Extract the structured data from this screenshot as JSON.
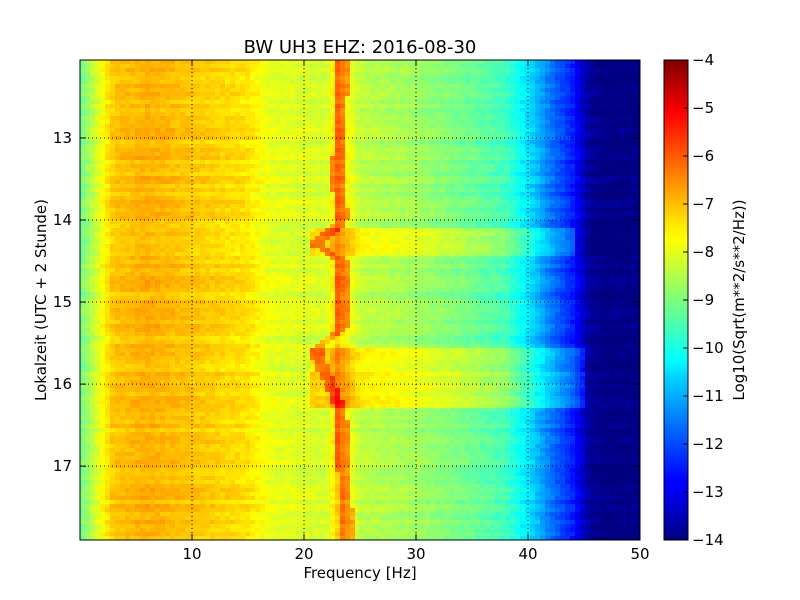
{
  "chart_data": {
    "type": "heatmap",
    "title": "BW UH3 EHZ: 2016-08-30",
    "xlabel": "Frequency [Hz]",
    "ylabel": "Lokalzeit (UTC + 2 Stunde)",
    "xlim": [
      0,
      50
    ],
    "ylim": [
      17.9,
      12.05
    ],
    "x_ticks": [
      10,
      20,
      30,
      40,
      50
    ],
    "y_ticks": [
      13,
      14,
      15,
      16,
      17
    ],
    "x_tick_labels": [
      "10",
      "20",
      "30",
      "40",
      "50"
    ],
    "y_tick_labels": [
      "13",
      "14",
      "15",
      "16",
      "17"
    ],
    "grid": true,
    "colormap": "jet",
    "colorbar": {
      "label": "Log10(Sqrt(m**2/s**2/Hz))",
      "range": [
        -14,
        -4
      ],
      "ticks": [
        -4,
        -5,
        -6,
        -7,
        -8,
        -9,
        -10,
        -11,
        -12,
        -13,
        -14
      ],
      "tick_labels": [
        "−4",
        "−5",
        "−6",
        "−7",
        "−8",
        "−9",
        "−10",
        "−11",
        "−12",
        "−13",
        "−14"
      ]
    },
    "spectrum_profile": {
      "frequency_hz": [
        0,
        1,
        2,
        3,
        6,
        10,
        15,
        17,
        20,
        22,
        23,
        25,
        30,
        35,
        38,
        40,
        42,
        44,
        45.5,
        47,
        50
      ],
      "log_amplitude": [
        -9.2,
        -8.5,
        -7.8,
        -7.2,
        -7.0,
        -7.2,
        -7.5,
        -8.0,
        -8.1,
        -8.2,
        -7.3,
        -8.4,
        -8.7,
        -9.2,
        -9.6,
        -10.5,
        -11.6,
        -12.5,
        -13.8,
        -14.0,
        -14.0
      ]
    },
    "tonal_line": {
      "description_hz_vs_time": [
        {
          "time": 12.05,
          "freq": 23.5
        },
        {
          "time": 12.8,
          "freq": 23.2
        },
        {
          "time": 13.6,
          "freq": 23.0
        },
        {
          "time": 14.0,
          "freq": 23.5
        },
        {
          "time": 14.3,
          "freq": 21.0
        },
        {
          "time": 14.5,
          "freq": 23.5
        },
        {
          "time": 15.3,
          "freq": 23.5
        },
        {
          "time": 15.6,
          "freq": 21.0
        },
        {
          "time": 16.3,
          "freq": 23.3
        },
        {
          "time": 17.0,
          "freq": 23.5
        },
        {
          "time": 17.9,
          "freq": 24.0
        }
      ]
    },
    "bright_bands": [
      {
        "time_start": 14.1,
        "time_end": 14.45,
        "freq_start": 20.5,
        "freq_end": 44.0
      },
      {
        "time_start": 15.55,
        "time_end": 16.3,
        "freq_start": 20.5,
        "freq_end": 45.5
      }
    ]
  }
}
